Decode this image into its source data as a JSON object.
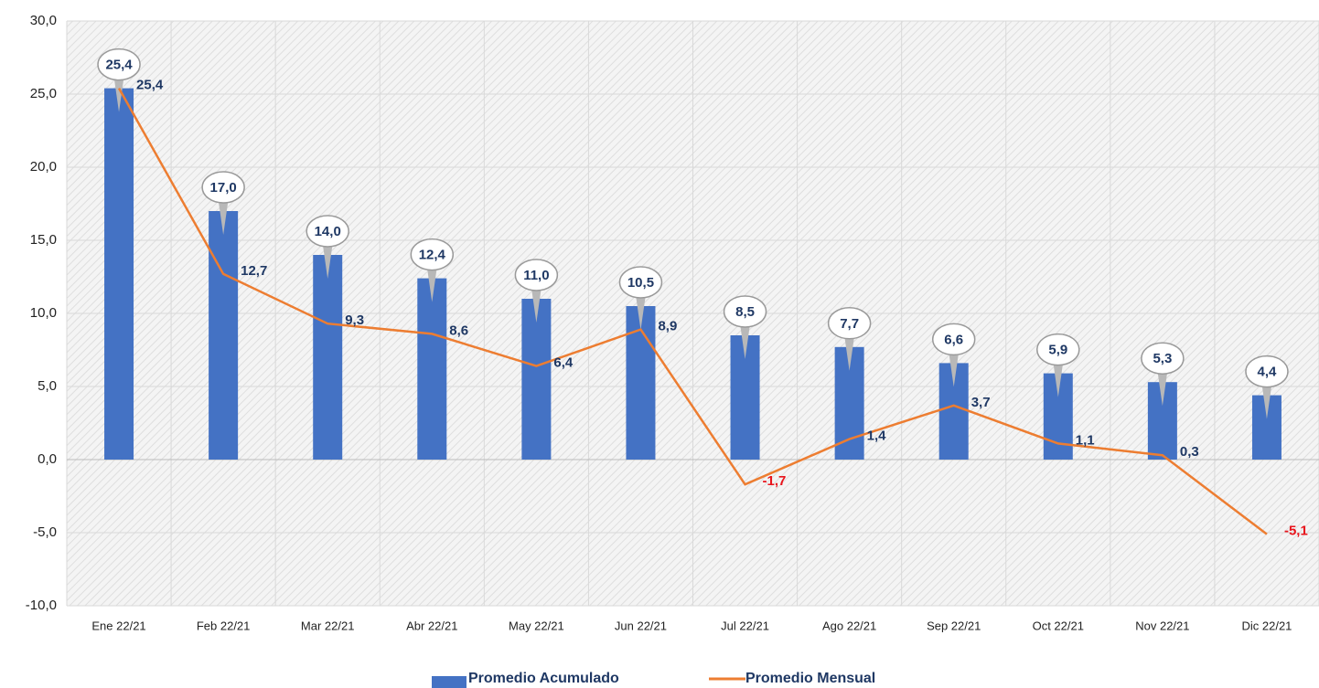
{
  "chart_data": {
    "type": "bar",
    "categories": [
      "Ene 22/21",
      "Feb 22/21",
      "Mar 22/21",
      "Abr 22/21",
      "May 22/21",
      "Jun 22/21",
      "Jul 22/21",
      "Ago 22/21",
      "Sep 22/21",
      "Oct 22/21",
      "Nov 22/21",
      "Dic 22/21"
    ],
    "series": [
      {
        "name": "Promedio Acumulado",
        "type": "bar",
        "color": "#4472c4",
        "values": [
          25.4,
          17.0,
          14.0,
          12.4,
          11.0,
          10.5,
          8.5,
          7.7,
          6.6,
          5.9,
          5.3,
          4.4
        ],
        "value_labels": [
          "25,4",
          "17,0",
          "14,0",
          "12,4",
          "11,0",
          "10,5",
          "8,5",
          "7,7",
          "6,6",
          "5,9",
          "5,3",
          "4,4"
        ]
      },
      {
        "name": "Promedio Mensual",
        "type": "line",
        "color": "#ed7d31",
        "values": [
          25.4,
          12.7,
          9.3,
          8.6,
          6.4,
          8.9,
          -1.7,
          1.4,
          3.7,
          1.1,
          0.3,
          -5.1
        ],
        "value_labels": [
          "25,4",
          "12,7",
          "9,3",
          "8,6",
          "6,4",
          "8,9",
          "-1,7",
          "1,4",
          "3,7",
          "1,1",
          "0,3",
          "-5,1"
        ]
      }
    ],
    "ylim": [
      -10,
      30
    ],
    "yticks": [
      {
        "value": -10,
        "label": "-10,0"
      },
      {
        "value": -5,
        "label": "-5,0"
      },
      {
        "value": 0,
        "label": "0,0"
      },
      {
        "value": 5,
        "label": "5,0"
      },
      {
        "value": 10,
        "label": "10,0"
      },
      {
        "value": 15,
        "label": "15,0"
      },
      {
        "value": 20,
        "label": "20,0"
      },
      {
        "value": 25,
        "label": "25,0"
      },
      {
        "value": 30,
        "label": "30,0"
      }
    ],
    "grid": true,
    "negative_color": "#e8141c",
    "legend": "bottom"
  }
}
